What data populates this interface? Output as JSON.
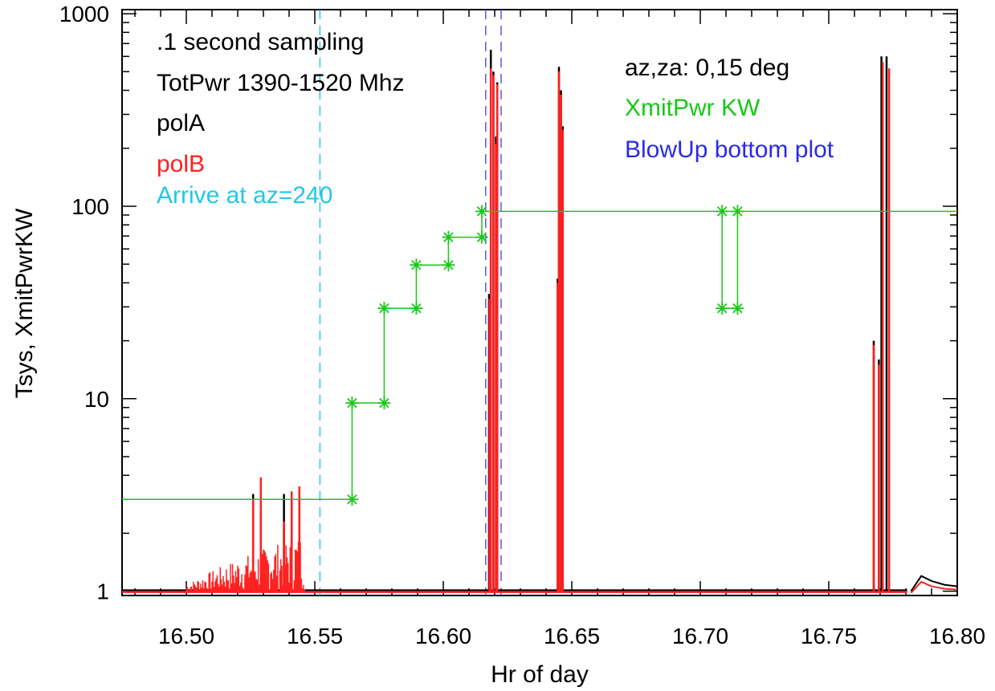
{
  "chart_data": {
    "type": "line",
    "xlabel": "Hr of day",
    "ylabel": "Tsys, XmitPwrKW",
    "xlim": [
      16.475,
      16.8
    ],
    "ylim": [
      0.95,
      1050
    ],
    "y_scale": "log",
    "grid": false,
    "x_ticks": [
      "16.50",
      "16.55",
      "16.60",
      "16.65",
      "16.70",
      "16.75",
      "16.80"
    ],
    "x_tick_values": [
      16.5,
      16.55,
      16.6,
      16.65,
      16.7,
      16.75,
      16.8
    ],
    "y_ticks": [
      "1",
      "10",
      "100",
      "1000"
    ],
    "y_tick_values": [
      1,
      10,
      100,
      1000
    ],
    "annotations": [
      {
        "text": ".1 second sampling",
        "color": "#000000"
      },
      {
        "text": "TotPwr 1390-1520 Mhz",
        "color": "#000000"
      },
      {
        "text": "polA",
        "color": "#000000"
      },
      {
        "text": "polB",
        "color": "#ff2020"
      },
      {
        "text": "Arrive at az=240",
        "color": "#22c8e6"
      },
      {
        "text": "az,za: 0,15 deg",
        "color": "#000000"
      },
      {
        "text": "XmitPwr KW",
        "color": "#18c818"
      },
      {
        "text": "BlowUp bottom plot",
        "color": "#2a2ae6"
      }
    ],
    "vlines": [
      {
        "x": 16.552,
        "color": "#22c8e6",
        "style": "dashed"
      },
      {
        "x": 16.6165,
        "color": "#5a5ae0",
        "style": "dashed"
      },
      {
        "x": 16.6225,
        "color": "#5a5ae0",
        "style": "dashed"
      }
    ],
    "series": [
      {
        "name": "XmitPwr KW",
        "color": "#18c818",
        "marker": "asterisk",
        "points": [
          [
            16.475,
            3
          ],
          [
            16.5645,
            3
          ],
          [
            16.5645,
            9.5
          ],
          [
            16.577,
            9.5
          ],
          [
            16.577,
            29.5
          ],
          [
            16.5895,
            29.5
          ],
          [
            16.5895,
            49.5
          ],
          [
            16.602,
            49.5
          ],
          [
            16.602,
            69
          ],
          [
            16.615,
            69
          ],
          [
            16.615,
            94
          ],
          [
            16.8,
            94
          ]
        ],
        "marker_points": [
          [
            16.5645,
            3
          ],
          [
            16.5645,
            9.5
          ],
          [
            16.577,
            9.5
          ],
          [
            16.577,
            29.5
          ],
          [
            16.5895,
            29.5
          ],
          [
            16.5895,
            49.5
          ],
          [
            16.602,
            49.5
          ],
          [
            16.602,
            69
          ],
          [
            16.615,
            69
          ],
          [
            16.615,
            94
          ],
          [
            16.7085,
            94
          ],
          [
            16.7085,
            29.5
          ],
          [
            16.7145,
            94
          ],
          [
            16.7145,
            29.5
          ]
        ],
        "extra_segments": [
          [
            [
              16.7085,
              94
            ],
            [
              16.7085,
              29.5
            ]
          ],
          [
            [
              16.7085,
              29.5
            ],
            [
              16.7145,
              29.5
            ]
          ],
          [
            [
              16.7145,
              29.5
            ],
            [
              16.7145,
              94
            ]
          ]
        ]
      },
      {
        "name": "polA",
        "color": "#000000",
        "baseline": 1.0,
        "spikes": [
          [
            16.526,
            3.2
          ],
          [
            16.529,
            2.6
          ],
          [
            16.538,
            3.2
          ],
          [
            16.541,
            3.0
          ],
          [
            16.544,
            3.2
          ],
          [
            16.6178,
            35
          ],
          [
            16.6185,
            650
          ],
          [
            16.6195,
            500
          ],
          [
            16.6205,
            230
          ],
          [
            16.621,
            440
          ],
          [
            16.6445,
            42
          ],
          [
            16.645,
            530
          ],
          [
            16.6458,
            400
          ],
          [
            16.6465,
            260
          ],
          [
            16.7675,
            20
          ],
          [
            16.7695,
            16
          ],
          [
            16.7705,
            600
          ],
          [
            16.7725,
            600
          ]
        ],
        "tail": [
          [
            16.782,
            1.0
          ],
          [
            16.786,
            1.2
          ],
          [
            16.79,
            1.13
          ],
          [
            16.795,
            1.08
          ],
          [
            16.8,
            1.06
          ]
        ]
      },
      {
        "name": "polB",
        "color": "#ff2020",
        "baseline": 1.0,
        "spikes": [
          [
            16.526,
            3.0
          ],
          [
            16.529,
            3.9
          ],
          [
            16.538,
            2.3
          ],
          [
            16.541,
            3.3
          ],
          [
            16.544,
            3.5
          ],
          [
            16.618,
            33
          ],
          [
            16.6185,
            520
          ],
          [
            16.6195,
            480
          ],
          [
            16.6205,
            210
          ],
          [
            16.621,
            430
          ],
          [
            16.6445,
            40
          ],
          [
            16.645,
            500
          ],
          [
            16.6458,
            380
          ],
          [
            16.6465,
            250
          ],
          [
            16.7675,
            19
          ],
          [
            16.7695,
            15
          ],
          [
            16.771,
            560
          ],
          [
            16.7735,
            520
          ]
        ],
        "tail": [
          [
            16.782,
            0.98
          ],
          [
            16.786,
            1.12
          ],
          [
            16.79,
            1.06
          ],
          [
            16.795,
            1.03
          ],
          [
            16.8,
            1.02
          ]
        ],
        "noise_region": [
          16.5,
          16.546
        ]
      }
    ]
  }
}
